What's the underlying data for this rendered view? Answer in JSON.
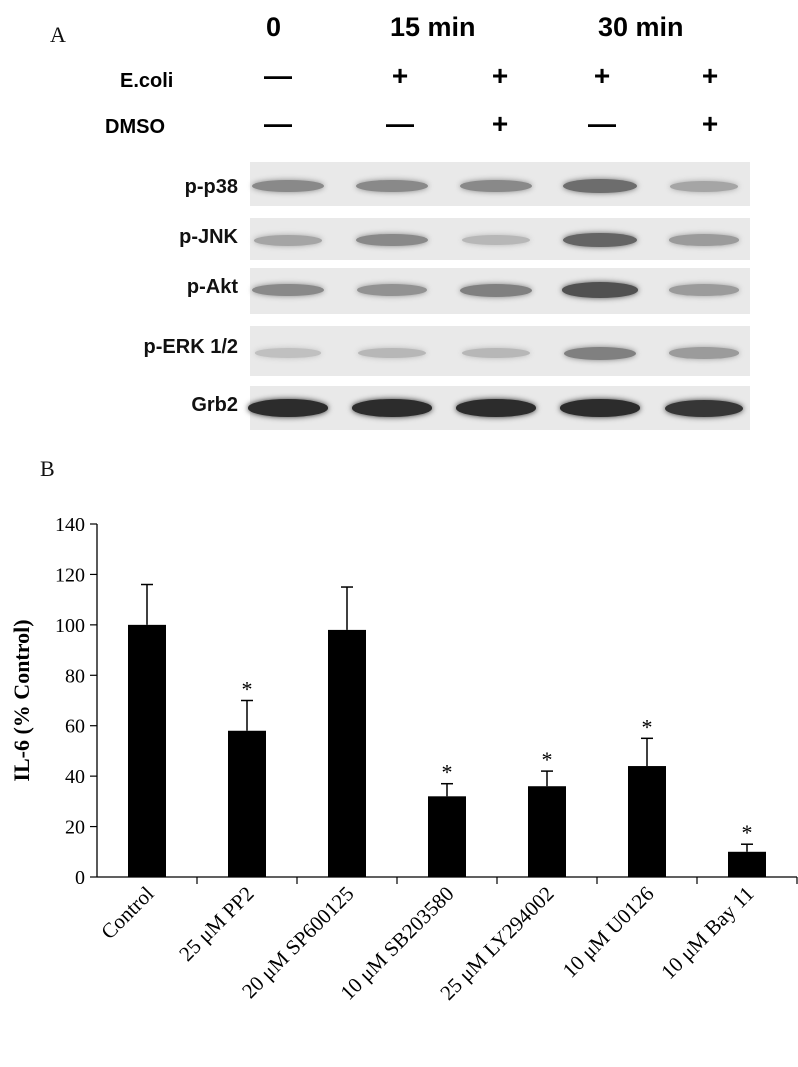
{
  "panel_a": {
    "label": "A",
    "time_labels": [
      "0",
      "15 min",
      "30 min"
    ],
    "treatment_rows": [
      {
        "label": "E.coli",
        "signs": [
          "—",
          "+",
          "+",
          "+",
          "+"
        ]
      },
      {
        "label": "DMSO",
        "signs": [
          "—",
          "—",
          "+",
          "—",
          "+"
        ]
      }
    ],
    "blots": [
      {
        "label": "p-p38",
        "band_intensity": [
          0.45,
          0.45,
          0.45,
          0.6,
          0.3
        ]
      },
      {
        "label": "p-JNK",
        "band_intensity": [
          0.3,
          0.45,
          0.2,
          0.65,
          0.35
        ]
      },
      {
        "label": "p-Akt",
        "band_intensity": [
          0.45,
          0.4,
          0.5,
          0.75,
          0.35
        ]
      },
      {
        "label": "p-ERK 1/2",
        "band_intensity": [
          0.15,
          0.2,
          0.2,
          0.5,
          0.35
        ]
      },
      {
        "label": "Grb2",
        "band_intensity": [
          0.95,
          0.95,
          0.95,
          0.95,
          0.9
        ]
      }
    ]
  },
  "panel_b": {
    "label": "B"
  },
  "chart_data": {
    "type": "bar",
    "title": "",
    "xlabel": "",
    "ylabel": "IL-6 (% Control)",
    "ylim": [
      0,
      140
    ],
    "yticks": [
      0,
      20,
      40,
      60,
      80,
      100,
      120,
      140
    ],
    "categories": [
      "Control",
      "25 μM PP2",
      "20 μM SP600125",
      "10 μM SB203580",
      "25 μM LY294002",
      "10 μM U0126",
      "10 μM Bay 11"
    ],
    "values": [
      100,
      58,
      98,
      32,
      36,
      44,
      10
    ],
    "errors": [
      16,
      12,
      17,
      5,
      6,
      11,
      3
    ],
    "significance": [
      "",
      "*",
      "",
      "*",
      "*",
      "*",
      "*"
    ],
    "bar_color": "#000000",
    "grid": false
  }
}
